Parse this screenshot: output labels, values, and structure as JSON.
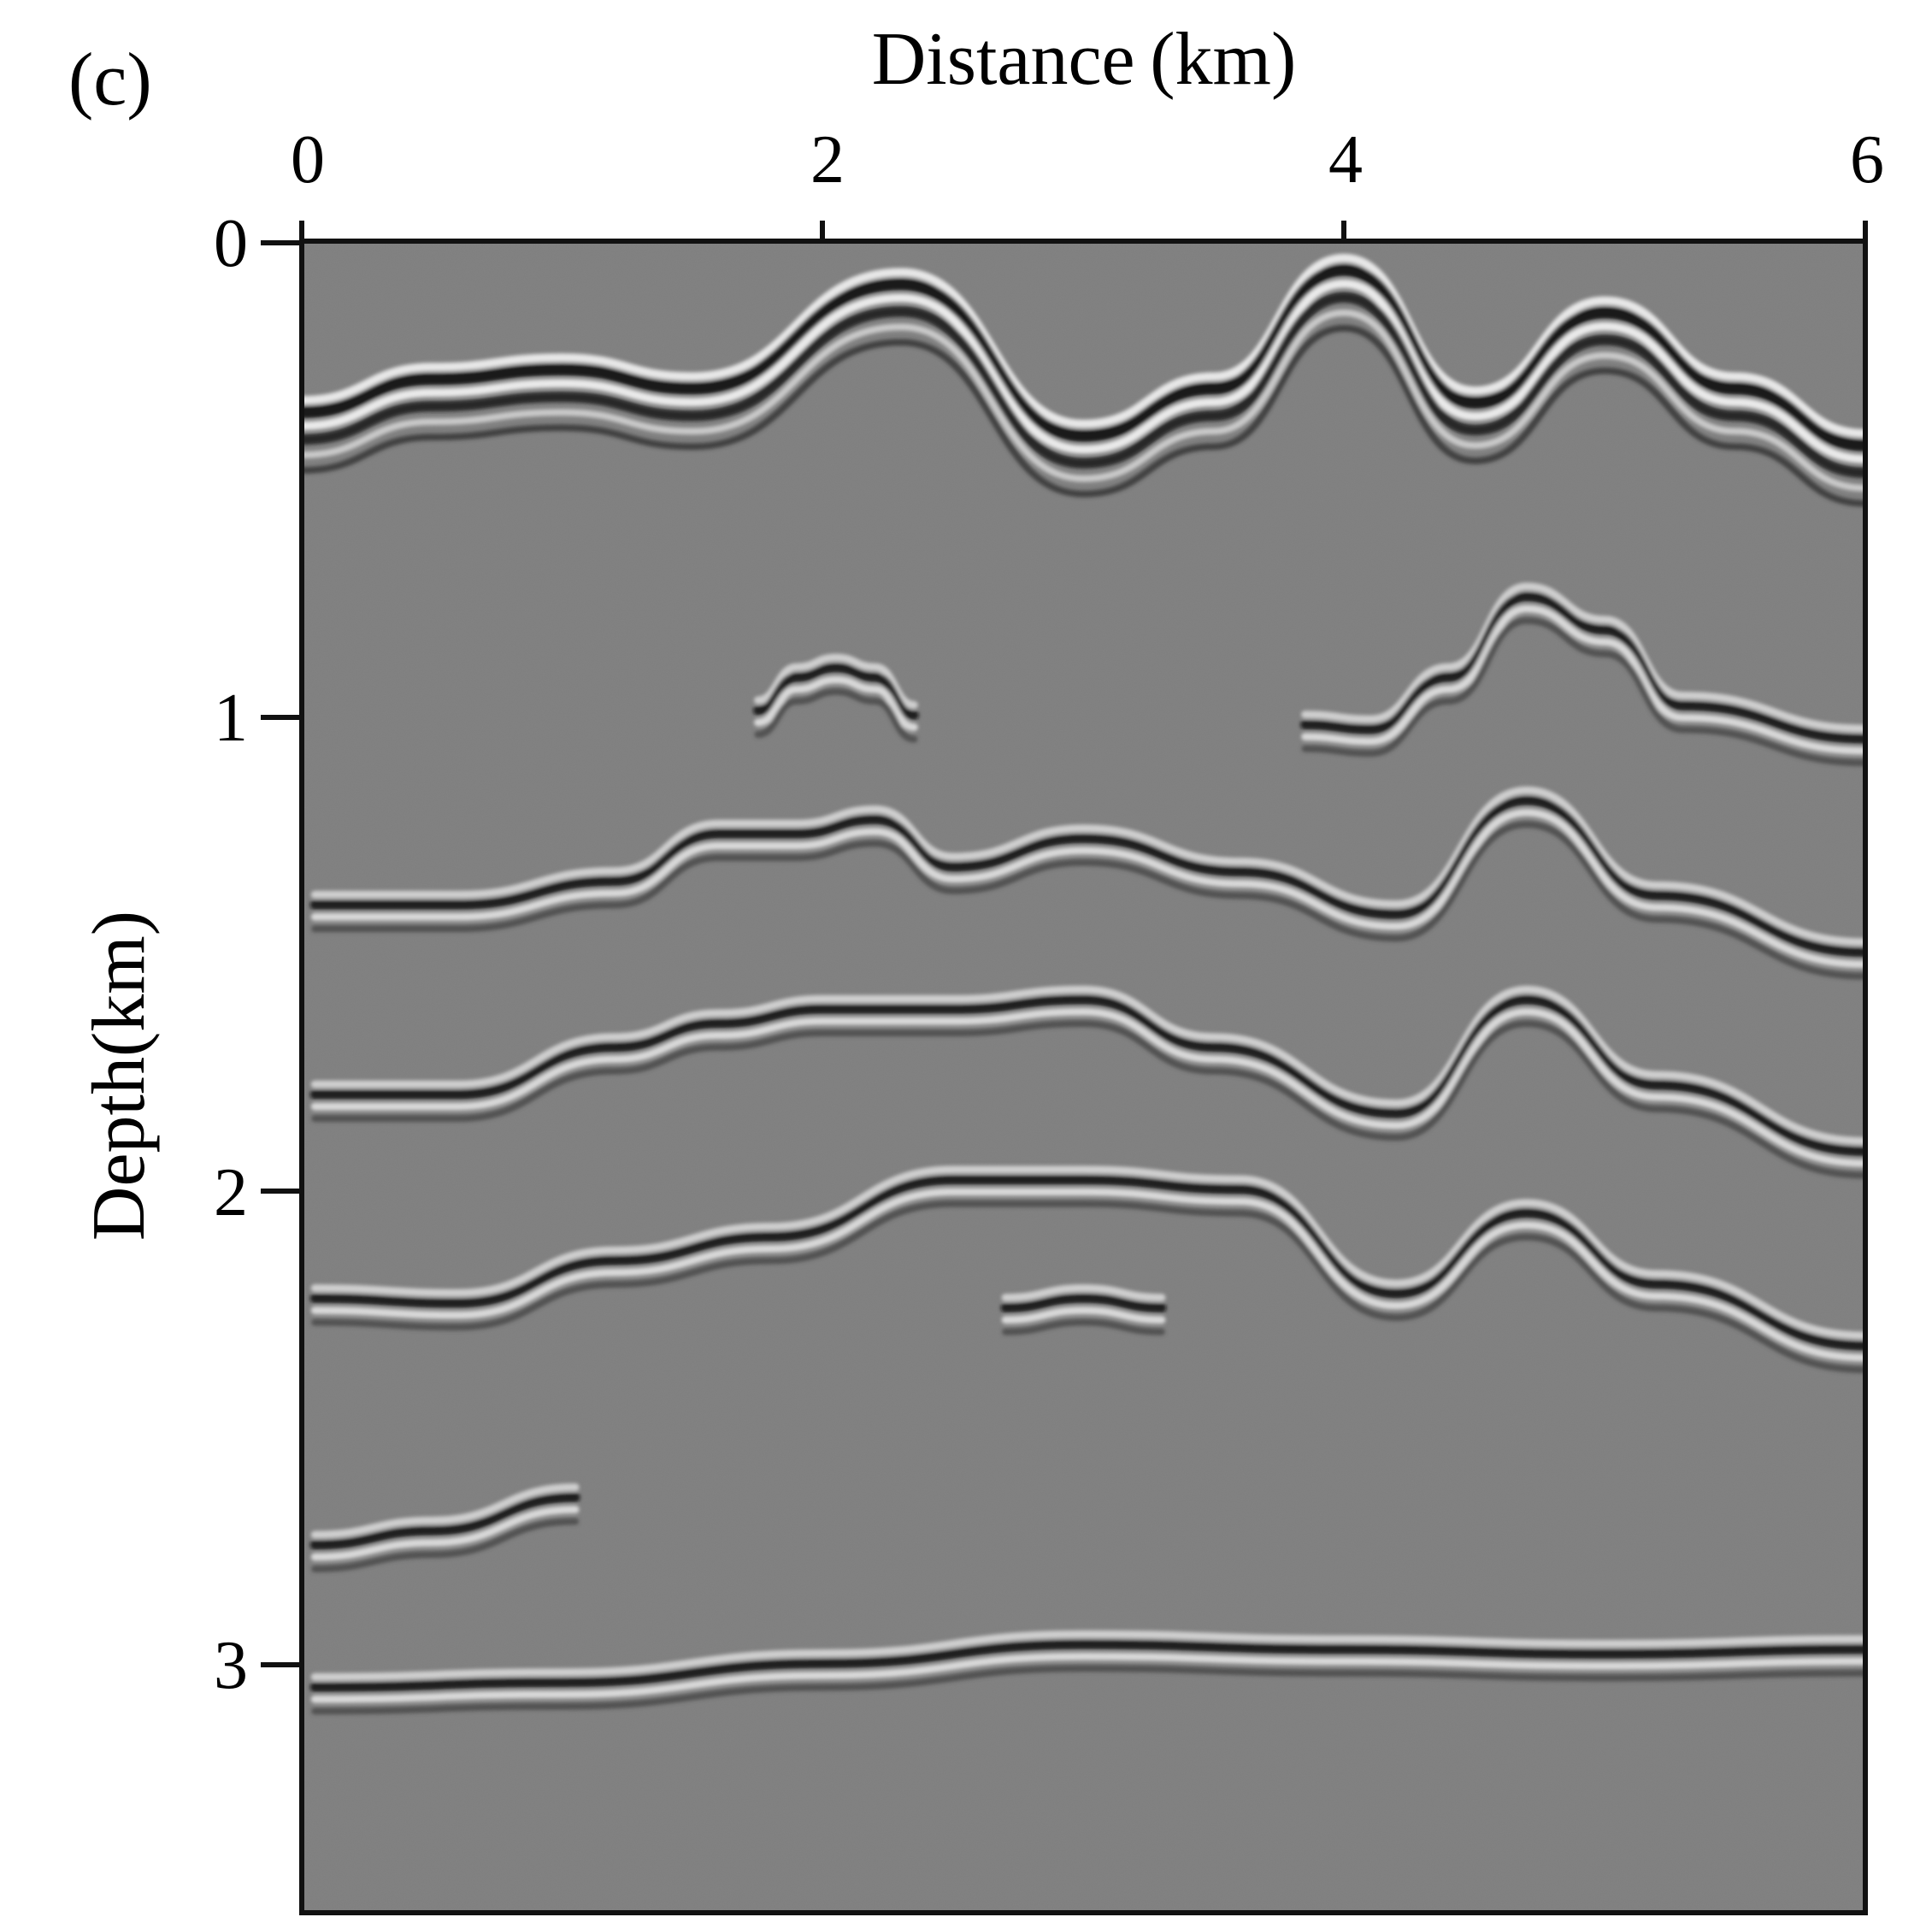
{
  "panel_label": "(c)",
  "x_axis": {
    "title": "Distance (km)",
    "ticks": [
      "0",
      "2",
      "4",
      "6"
    ],
    "range": [
      0,
      6
    ]
  },
  "y_axis": {
    "title": "Depth(km)",
    "ticks": [
      "0",
      "1",
      "2",
      "3"
    ],
    "range": [
      0,
      3.5
    ]
  },
  "image": {
    "kind": "seismic depth migration section",
    "colormap": "grayscale",
    "background_color": "#7f7f7f"
  },
  "reflectors": [
    {
      "name": "topography",
      "x": [
        0,
        0.5,
        1.0,
        1.5,
        2.3,
        3.0,
        3.5,
        4.0,
        4.5,
        5.0,
        5.5,
        6.0
      ],
      "y": [
        0.35,
        0.28,
        0.26,
        0.3,
        0.08,
        0.4,
        0.3,
        0.05,
        0.33,
        0.14,
        0.3,
        0.42
      ]
    },
    {
      "name": "dome-small",
      "x": [
        1.75,
        1.9,
        2.05,
        2.2,
        2.35
      ],
      "y": [
        0.99,
        0.92,
        0.9,
        0.92,
        1.0
      ]
    },
    {
      "name": "r1",
      "x": [
        0.05,
        0.6,
        1.2,
        1.6,
        1.9,
        2.2,
        2.5,
        3.0,
        3.6,
        4.2,
        4.7,
        5.2,
        6.0
      ],
      "y": [
        1.4,
        1.4,
        1.35,
        1.25,
        1.25,
        1.22,
        1.32,
        1.26,
        1.33,
        1.42,
        1.18,
        1.38,
        1.5
      ]
    },
    {
      "name": "r2",
      "x": [
        0.05,
        0.6,
        1.2,
        1.6,
        2.0,
        2.5,
        3.0,
        3.5,
        4.2,
        4.7,
        5.2,
        6.0
      ],
      "y": [
        1.8,
        1.8,
        1.7,
        1.65,
        1.62,
        1.62,
        1.6,
        1.7,
        1.84,
        1.6,
        1.78,
        1.92
      ]
    },
    {
      "name": "r3",
      "x": [
        0.05,
        0.6,
        1.2,
        1.8,
        2.5,
        3.0,
        3.6,
        4.2,
        4.7,
        5.2,
        6.0
      ],
      "y": [
        2.23,
        2.24,
        2.15,
        2.1,
        1.98,
        1.98,
        2.0,
        2.22,
        2.05,
        2.2,
        2.33
      ]
    },
    {
      "name": "r4",
      "x": [
        0.05,
        0.5,
        1.05
      ],
      "y": [
        2.75,
        2.72,
        2.65
      ]
    },
    {
      "name": "r5",
      "x": [
        0.05,
        1.0,
        2.0,
        3.0,
        4.0,
        5.0,
        6.0
      ],
      "y": [
        3.05,
        3.04,
        3.0,
        2.96,
        2.97,
        2.98,
        2.97
      ]
    },
    {
      "name": "r6",
      "x": [
        2.7,
        3.0,
        3.3
      ],
      "y": [
        2.25,
        2.23,
        2.25
      ]
    },
    {
      "name": "r7",
      "x": [
        3.85,
        4.1,
        4.4,
        4.7,
        5.0,
        5.3,
        6.0
      ],
      "y": [
        1.02,
        1.03,
        0.92,
        0.75,
        0.82,
        0.98,
        1.05
      ]
    }
  ]
}
